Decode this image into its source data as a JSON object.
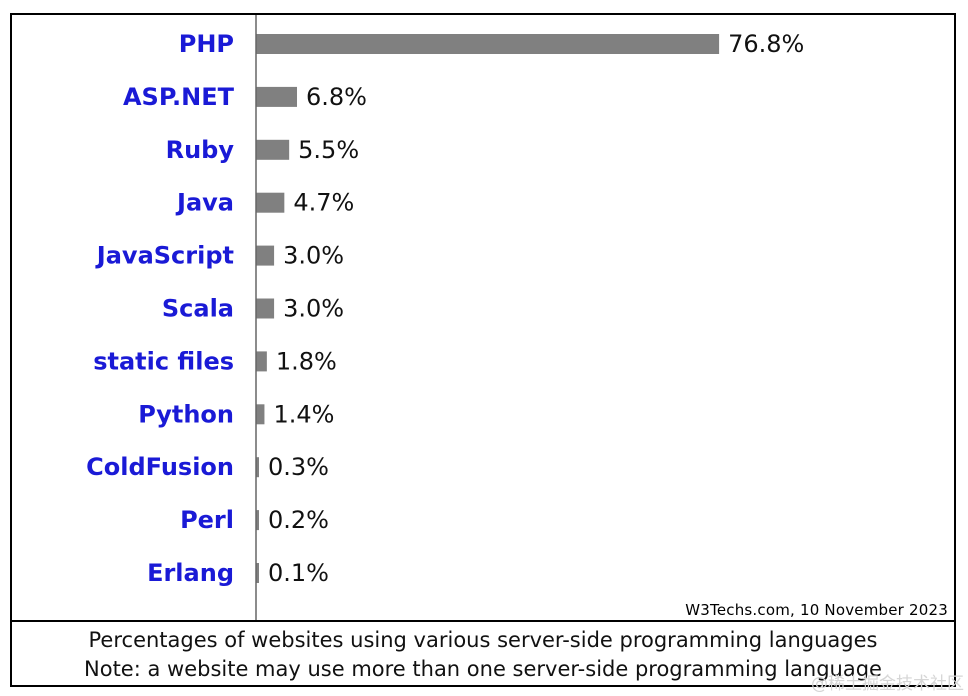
{
  "chart_data": {
    "type": "bar",
    "orientation": "horizontal",
    "categories": [
      "PHP",
      "ASP.NET",
      "Ruby",
      "Java",
      "JavaScript",
      "Scala",
      "static files",
      "Python",
      "ColdFusion",
      "Perl",
      "Erlang"
    ],
    "values": [
      76.8,
      6.8,
      5.5,
      4.7,
      3.0,
      3.0,
      1.8,
      1.4,
      0.3,
      0.2,
      0.1
    ],
    "value_labels": [
      "76.8%",
      "6.8%",
      "5.5%",
      "4.7%",
      "3.0%",
      "3.0%",
      "1.8%",
      "1.4%",
      "0.3%",
      "0.2%",
      "0.1%"
    ],
    "xlim": [
      0,
      100
    ],
    "grid": false,
    "legend": "none"
  },
  "source": "W3Techs.com, 10 November 2023",
  "caption": {
    "line1": "Percentages of websites using various server-side programming languages",
    "line2": "Note: a website may use more than one server-side programming language"
  },
  "watermark": "@稀土掘金技术社区",
  "colors": {
    "bar": "#808080",
    "category_text": "#1a1ad6",
    "value_text": "#111111"
  }
}
